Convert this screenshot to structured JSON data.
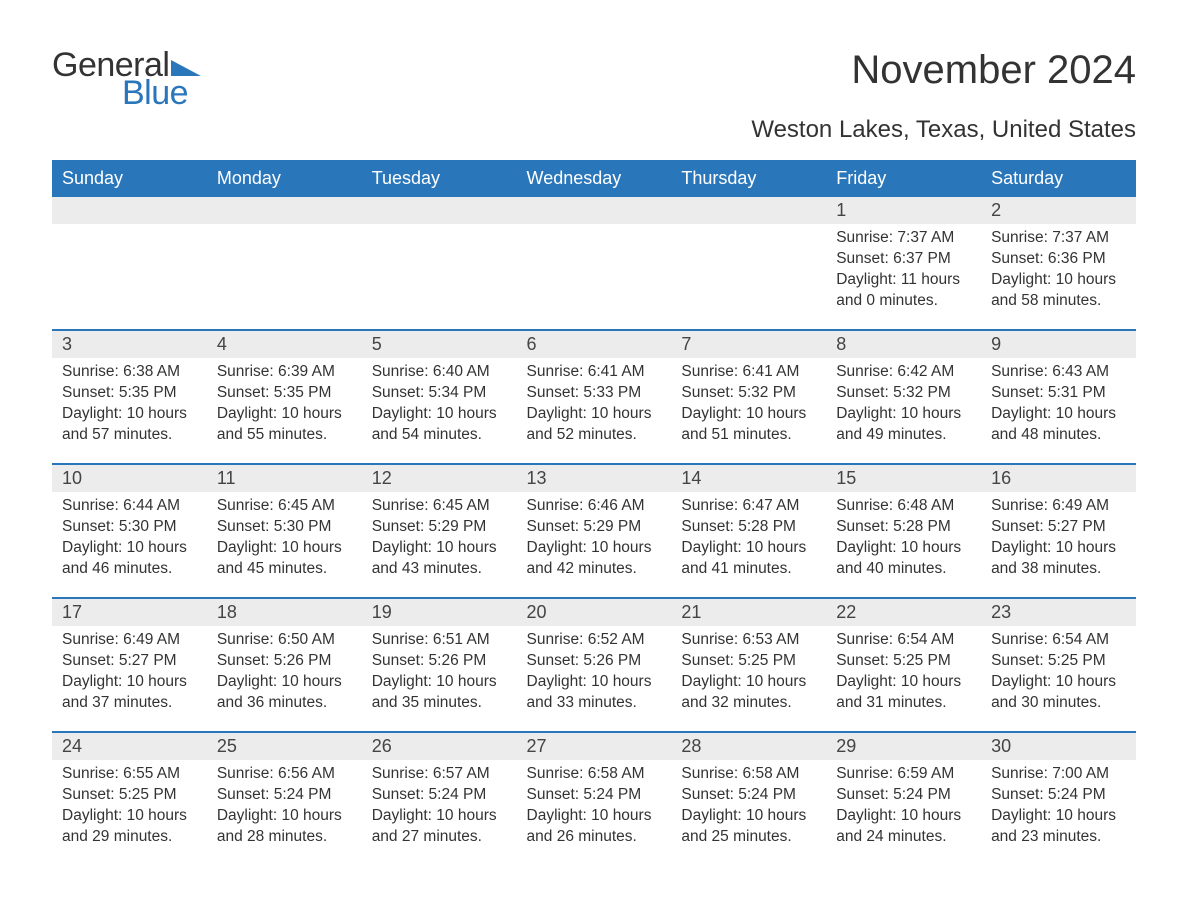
{
  "logo": {
    "word1": "General",
    "word2": "Blue",
    "tri_color": "#2a76bb"
  },
  "title": "November 2024",
  "subtitle": "Weston Lakes, Texas, United States",
  "colors": {
    "header_bg": "#2a76bb",
    "header_text": "#ffffff",
    "daynum_bg": "#ececec",
    "rule": "#2a76bb",
    "body_text": "#333333",
    "page_bg": "#ffffff"
  },
  "fonts": {
    "title_size": 40,
    "subtitle_size": 24,
    "weekday_size": 18,
    "daynum_size": 18,
    "body_size": 15.5
  },
  "weekdays": [
    "Sunday",
    "Monday",
    "Tuesday",
    "Wednesday",
    "Thursday",
    "Friday",
    "Saturday"
  ],
  "weeks": [
    [
      null,
      null,
      null,
      null,
      null,
      {
        "n": "1",
        "sunrise": "7:37 AM",
        "sunset": "6:37 PM",
        "day_h": "11",
        "day_m": "0"
      },
      {
        "n": "2",
        "sunrise": "7:37 AM",
        "sunset": "6:36 PM",
        "day_h": "10",
        "day_m": "58"
      }
    ],
    [
      {
        "n": "3",
        "sunrise": "6:38 AM",
        "sunset": "5:35 PM",
        "day_h": "10",
        "day_m": "57"
      },
      {
        "n": "4",
        "sunrise": "6:39 AM",
        "sunset": "5:35 PM",
        "day_h": "10",
        "day_m": "55"
      },
      {
        "n": "5",
        "sunrise": "6:40 AM",
        "sunset": "5:34 PM",
        "day_h": "10",
        "day_m": "54"
      },
      {
        "n": "6",
        "sunrise": "6:41 AM",
        "sunset": "5:33 PM",
        "day_h": "10",
        "day_m": "52"
      },
      {
        "n": "7",
        "sunrise": "6:41 AM",
        "sunset": "5:32 PM",
        "day_h": "10",
        "day_m": "51"
      },
      {
        "n": "8",
        "sunrise": "6:42 AM",
        "sunset": "5:32 PM",
        "day_h": "10",
        "day_m": "49"
      },
      {
        "n": "9",
        "sunrise": "6:43 AM",
        "sunset": "5:31 PM",
        "day_h": "10",
        "day_m": "48"
      }
    ],
    [
      {
        "n": "10",
        "sunrise": "6:44 AM",
        "sunset": "5:30 PM",
        "day_h": "10",
        "day_m": "46"
      },
      {
        "n": "11",
        "sunrise": "6:45 AM",
        "sunset": "5:30 PM",
        "day_h": "10",
        "day_m": "45"
      },
      {
        "n": "12",
        "sunrise": "6:45 AM",
        "sunset": "5:29 PM",
        "day_h": "10",
        "day_m": "43"
      },
      {
        "n": "13",
        "sunrise": "6:46 AM",
        "sunset": "5:29 PM",
        "day_h": "10",
        "day_m": "42"
      },
      {
        "n": "14",
        "sunrise": "6:47 AM",
        "sunset": "5:28 PM",
        "day_h": "10",
        "day_m": "41"
      },
      {
        "n": "15",
        "sunrise": "6:48 AM",
        "sunset": "5:28 PM",
        "day_h": "10",
        "day_m": "40"
      },
      {
        "n": "16",
        "sunrise": "6:49 AM",
        "sunset": "5:27 PM",
        "day_h": "10",
        "day_m": "38"
      }
    ],
    [
      {
        "n": "17",
        "sunrise": "6:49 AM",
        "sunset": "5:27 PM",
        "day_h": "10",
        "day_m": "37"
      },
      {
        "n": "18",
        "sunrise": "6:50 AM",
        "sunset": "5:26 PM",
        "day_h": "10",
        "day_m": "36"
      },
      {
        "n": "19",
        "sunrise": "6:51 AM",
        "sunset": "5:26 PM",
        "day_h": "10",
        "day_m": "35"
      },
      {
        "n": "20",
        "sunrise": "6:52 AM",
        "sunset": "5:26 PM",
        "day_h": "10",
        "day_m": "33"
      },
      {
        "n": "21",
        "sunrise": "6:53 AM",
        "sunset": "5:25 PM",
        "day_h": "10",
        "day_m": "32"
      },
      {
        "n": "22",
        "sunrise": "6:54 AM",
        "sunset": "5:25 PM",
        "day_h": "10",
        "day_m": "31"
      },
      {
        "n": "23",
        "sunrise": "6:54 AM",
        "sunset": "5:25 PM",
        "day_h": "10",
        "day_m": "30"
      }
    ],
    [
      {
        "n": "24",
        "sunrise": "6:55 AM",
        "sunset": "5:25 PM",
        "day_h": "10",
        "day_m": "29"
      },
      {
        "n": "25",
        "sunrise": "6:56 AM",
        "sunset": "5:24 PM",
        "day_h": "10",
        "day_m": "28"
      },
      {
        "n": "26",
        "sunrise": "6:57 AM",
        "sunset": "5:24 PM",
        "day_h": "10",
        "day_m": "27"
      },
      {
        "n": "27",
        "sunrise": "6:58 AM",
        "sunset": "5:24 PM",
        "day_h": "10",
        "day_m": "26"
      },
      {
        "n": "28",
        "sunrise": "6:58 AM",
        "sunset": "5:24 PM",
        "day_h": "10",
        "day_m": "25"
      },
      {
        "n": "29",
        "sunrise": "6:59 AM",
        "sunset": "5:24 PM",
        "day_h": "10",
        "day_m": "24"
      },
      {
        "n": "30",
        "sunrise": "7:00 AM",
        "sunset": "5:24 PM",
        "day_h": "10",
        "day_m": "23"
      }
    ]
  ],
  "labels": {
    "sunrise": "Sunrise: ",
    "sunset": "Sunset: ",
    "daylight_prefix": "Daylight: ",
    "hours_word": " hours",
    "and_word": "and ",
    "minutes_word": " minutes."
  }
}
